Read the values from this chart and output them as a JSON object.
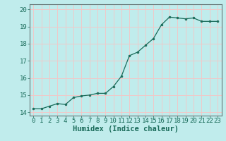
{
  "x": [
    0,
    1,
    2,
    3,
    4,
    5,
    6,
    7,
    8,
    9,
    10,
    11,
    12,
    13,
    14,
    15,
    16,
    17,
    18,
    19,
    20,
    21,
    22,
    23
  ],
  "y": [
    14.2,
    14.2,
    14.35,
    14.5,
    14.45,
    14.85,
    14.95,
    15.0,
    15.1,
    15.1,
    15.5,
    16.1,
    17.3,
    17.5,
    17.9,
    18.3,
    19.1,
    19.55,
    19.5,
    19.45,
    19.5,
    19.3,
    19.3,
    19.3
  ],
  "xlabel": "Humidex (Indice chaleur)",
  "bg_color": "#c0ecec",
  "grid_color": "#f0c8c8",
  "line_color": "#1a6b5a",
  "marker_color": "#1a6b5a",
  "xlim": [
    -0.5,
    23.5
  ],
  "ylim": [
    13.8,
    20.3
  ],
  "yticks": [
    14,
    15,
    16,
    17,
    18,
    19,
    20
  ],
  "xticks": [
    0,
    1,
    2,
    3,
    4,
    5,
    6,
    7,
    8,
    9,
    10,
    11,
    12,
    13,
    14,
    15,
    16,
    17,
    18,
    19,
    20,
    21,
    22,
    23
  ],
  "xlabel_fontsize": 7.5,
  "tick_fontsize": 6.5
}
